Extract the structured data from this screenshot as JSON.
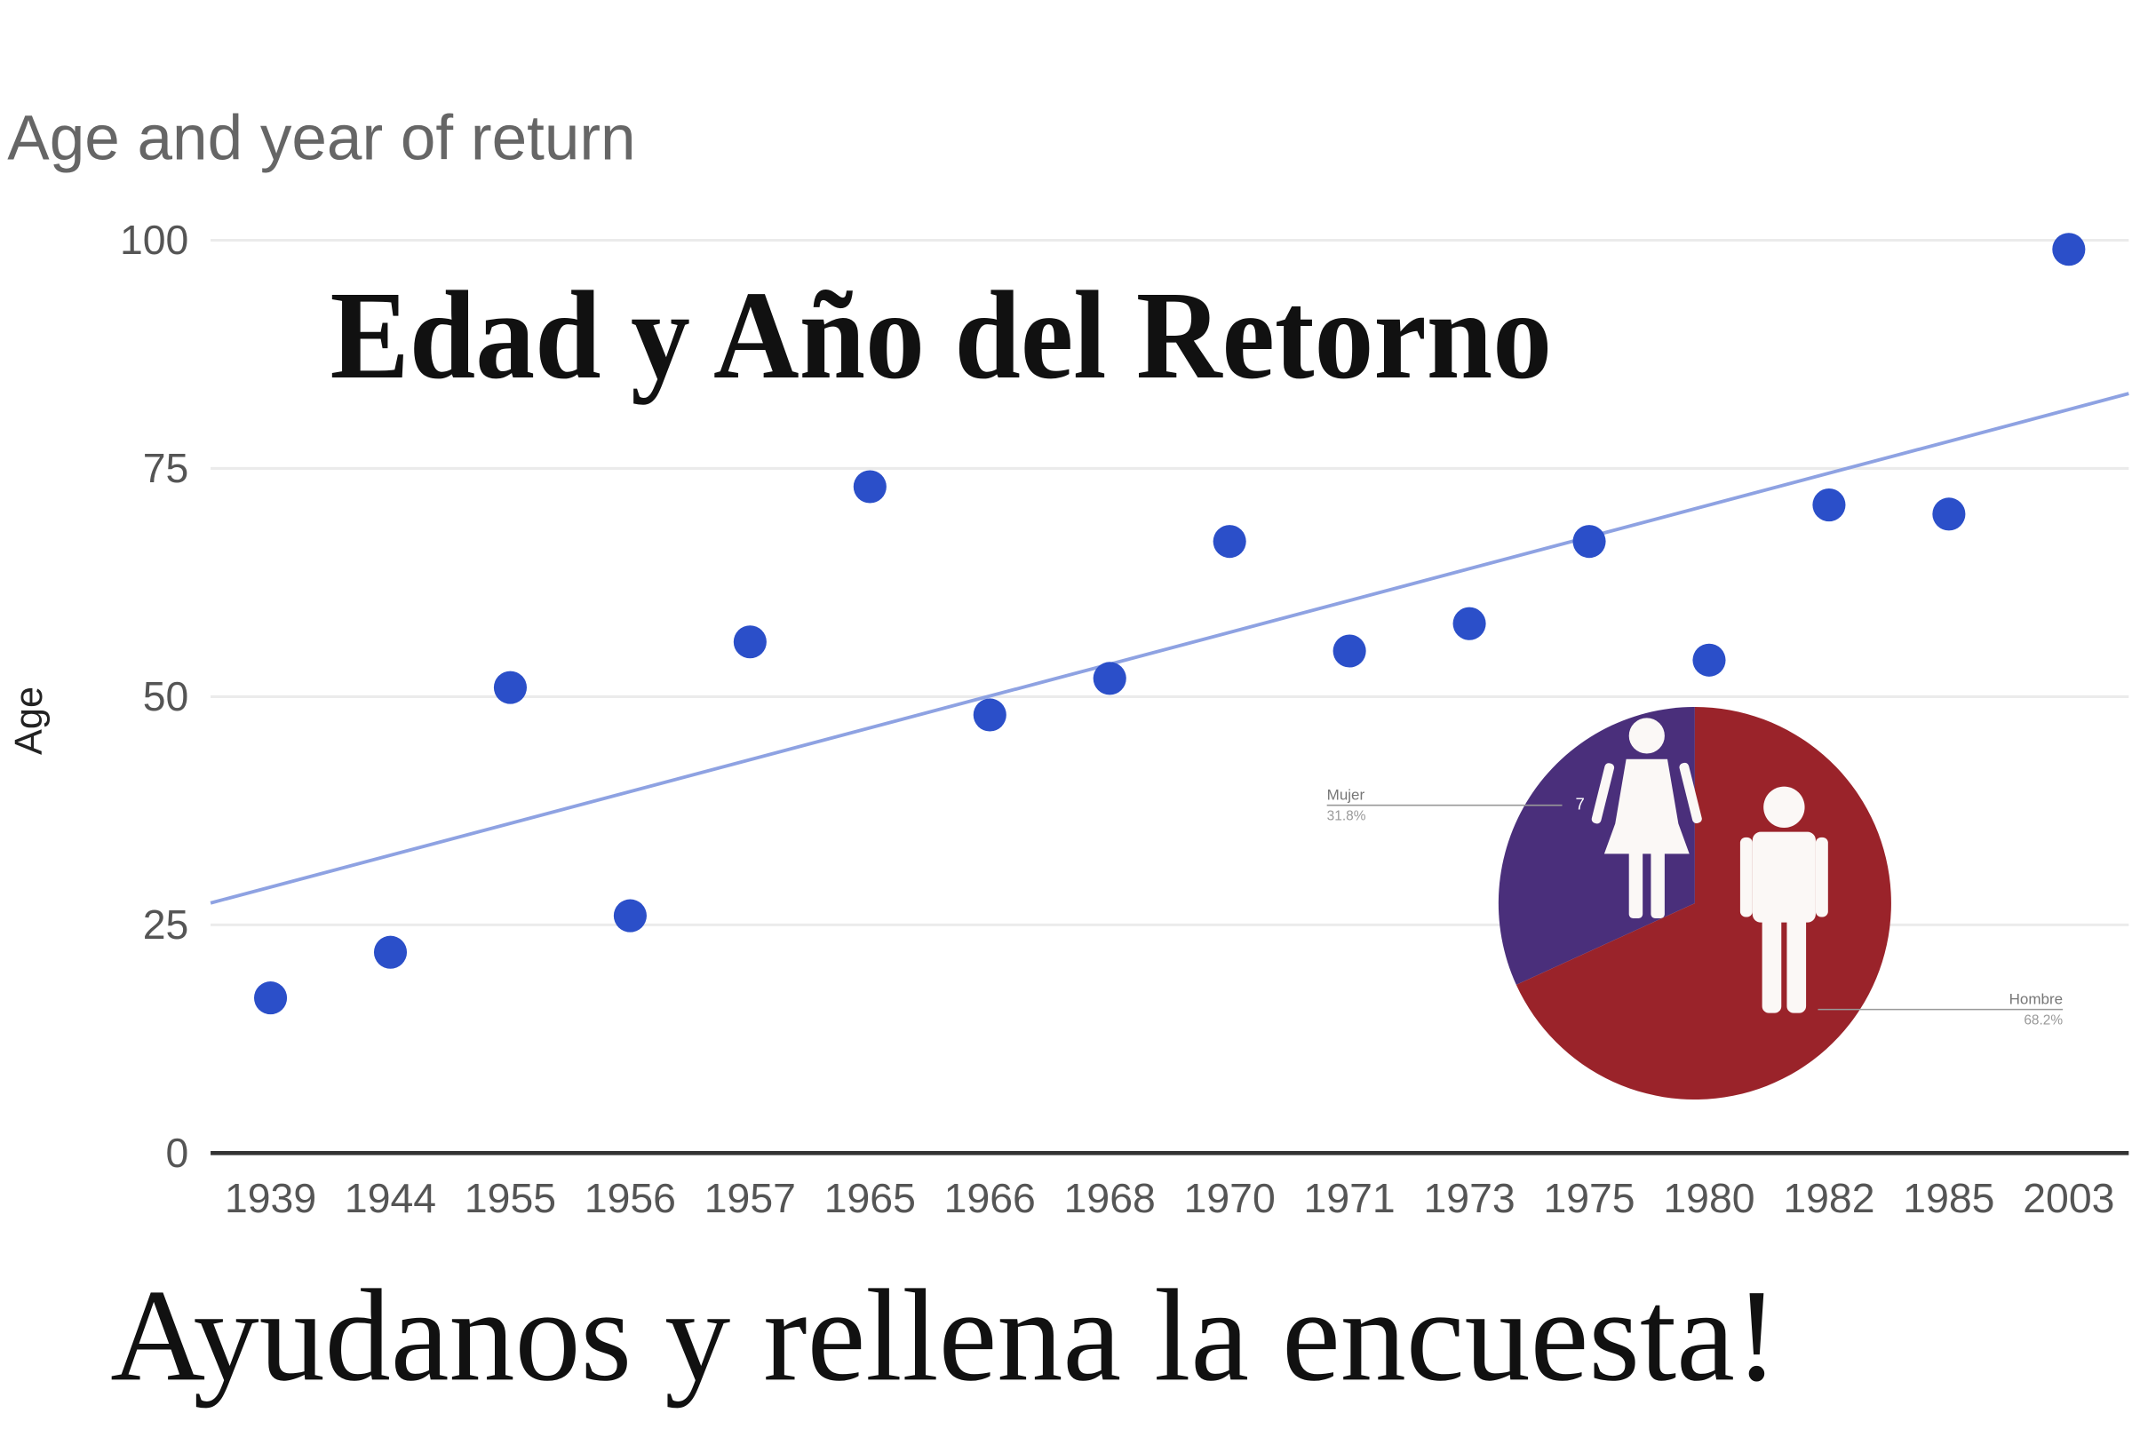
{
  "headline": "Edad y Año del Retorno",
  "call_to_action": "Ayudanos y rellena la encuesta!",
  "chart_data": [
    {
      "type": "scatter",
      "title": "Age and year of return",
      "y_label": "Age",
      "categories": [
        "1939",
        "1944",
        "1955",
        "1956",
        "1957",
        "1965",
        "1966",
        "1968",
        "1970",
        "1971",
        "1973",
        "1975",
        "1980",
        "1982",
        "1985",
        "2003"
      ],
      "values": [
        17,
        22,
        51,
        26,
        56,
        73,
        48,
        52,
        67,
        55,
        58,
        67,
        54,
        71,
        70,
        99
      ],
      "color": "#2b4fc9",
      "trendline": {
        "values": [
          27.4,
          83.2
        ],
        "color": "#8ea2e2"
      },
      "ylim": [
        0,
        100
      ],
      "yticks": [
        0,
        25,
        50,
        75,
        100
      ],
      "grid": true
    },
    {
      "type": "pie",
      "categories": [
        "Mujer",
        "Hombre"
      ],
      "values": [
        7,
        15
      ],
      "percent_labels": [
        "31.8%",
        "68.2%"
      ],
      "colors": [
        "#4a2f7b",
        "#9a232a"
      ]
    }
  ]
}
